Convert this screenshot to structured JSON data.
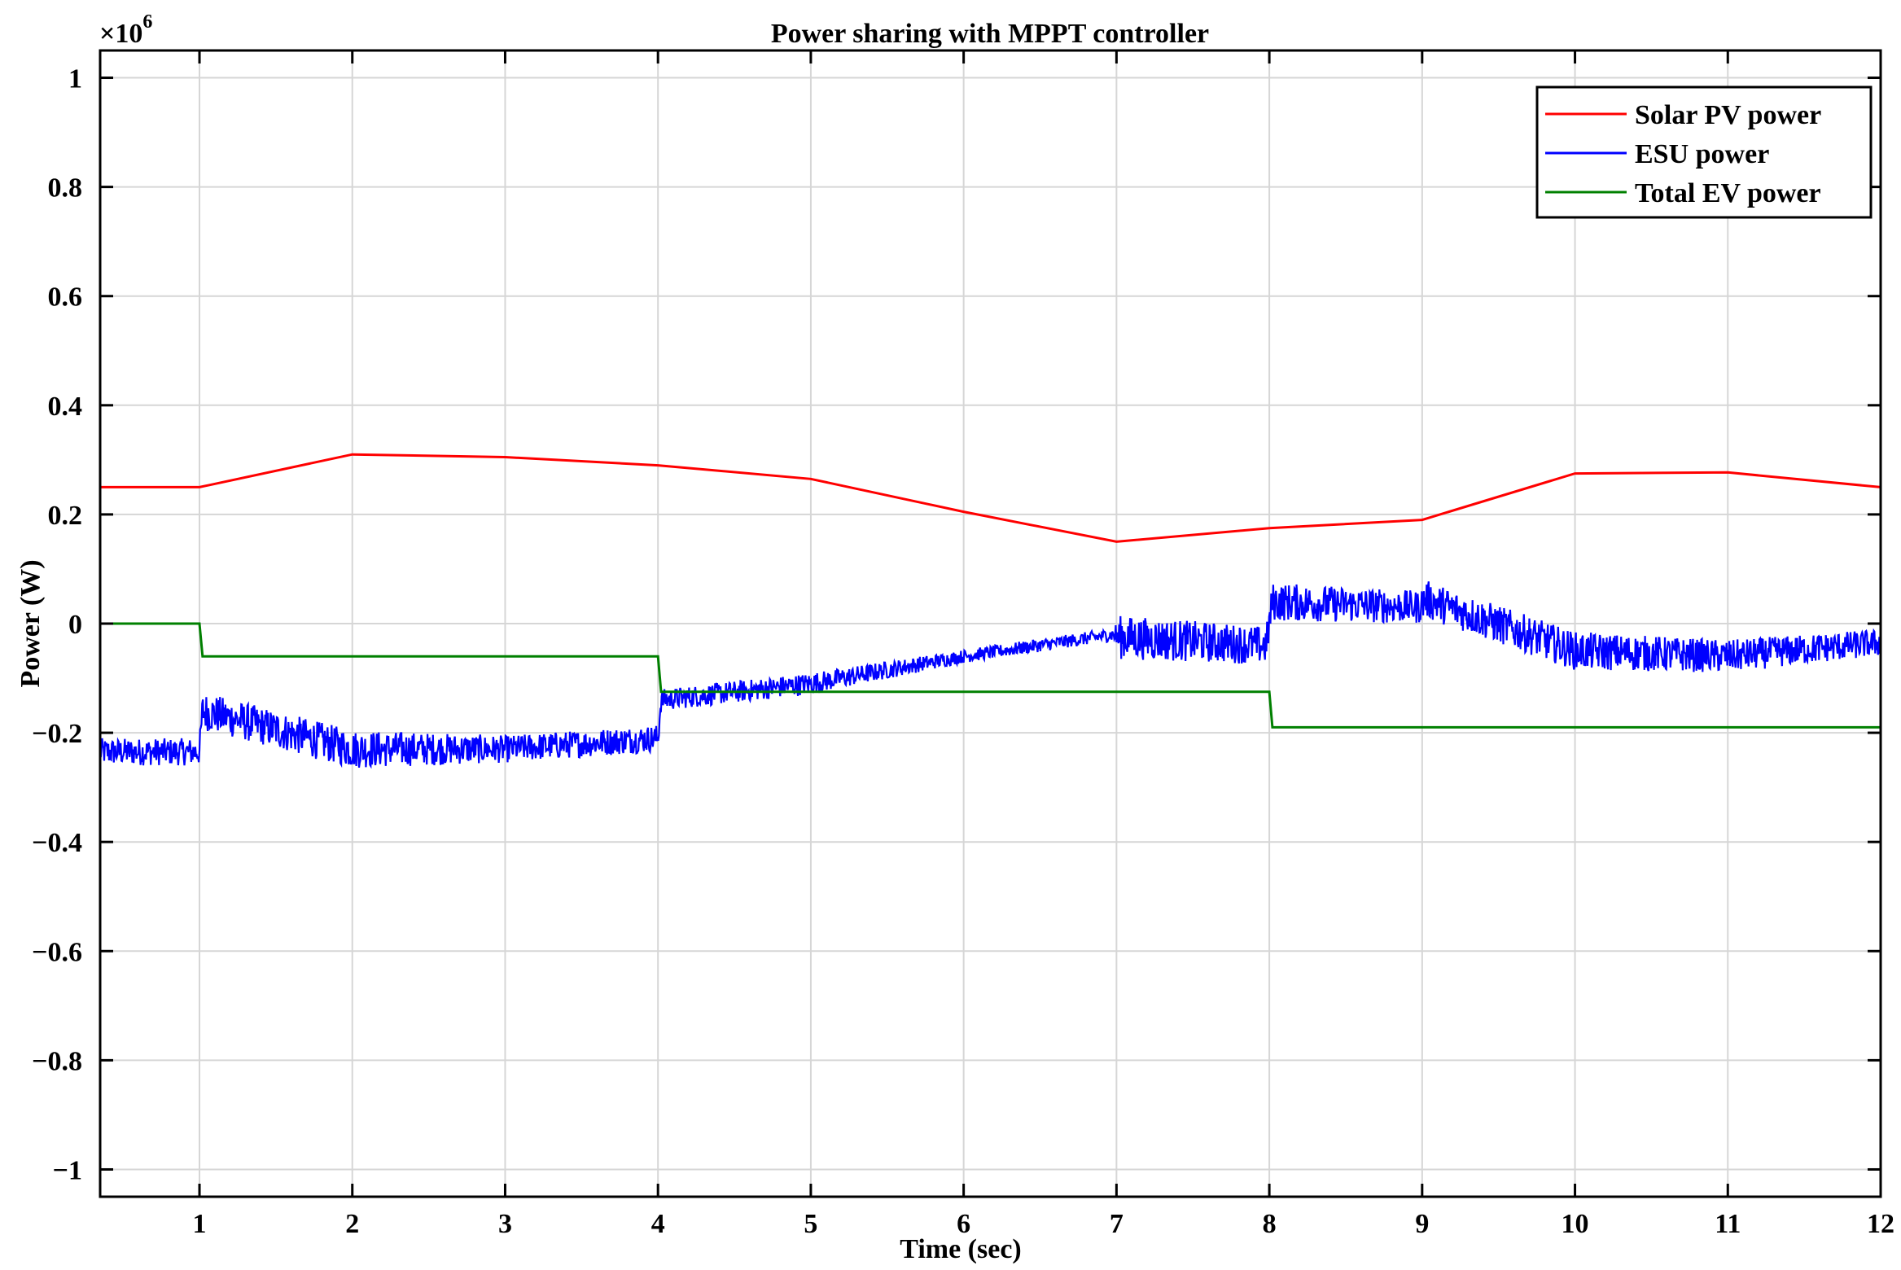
{
  "chart_data": {
    "type": "line",
    "title": "Power sharing with MPPT controller",
    "xlabel": "Time (sec)",
    "ylabel": "Power (W)",
    "y_multiplier": "×10",
    "y_multiplier_exponent": "6",
    "xlim": [
      0.35,
      12
    ],
    "ylim": [
      -1.05,
      1.05
    ],
    "xticks": [
      1,
      2,
      3,
      4,
      5,
      6,
      7,
      8,
      9,
      10,
      11,
      12
    ],
    "xtick_labels": [
      "1",
      "2",
      "3",
      "4",
      "5",
      "6",
      "7",
      "8",
      "9",
      "10",
      "11",
      "12"
    ],
    "yticks": [
      1,
      0.8,
      0.6,
      0.4,
      0.2,
      0,
      -0.2,
      -0.4,
      -0.6,
      -0.8,
      -1
    ],
    "ytick_labels": [
      "1",
      "0.8",
      "0.6",
      "0.4",
      "0.2",
      "0",
      "−0.2",
      "−0.4",
      "−0.6",
      "−0.8",
      "−1"
    ],
    "grid": true,
    "legend_position": "top-right",
    "series": [
      {
        "name": "Solar PV power",
        "color": "#ff0000",
        "x": [
          0.35,
          1,
          2,
          3,
          4,
          5,
          6,
          7,
          8,
          9,
          10,
          11,
          12
        ],
        "y": [
          0.25,
          0.25,
          0.31,
          0.305,
          0.29,
          0.265,
          0.205,
          0.15,
          0.175,
          0.19,
          0.275,
          0.277,
          0.25
        ]
      },
      {
        "name": "ESU power",
        "color": "#0000ff",
        "noisy": true,
        "x": [
          0.35,
          1,
          1.02,
          2,
          3,
          4,
          4.02,
          5,
          6,
          6.98,
          7.02,
          7.98,
          8.02,
          8.98,
          9.02,
          10,
          11,
          12
        ],
        "y": [
          -0.235,
          -0.235,
          -0.16,
          -0.23,
          -0.23,
          -0.21,
          -0.14,
          -0.11,
          -0.06,
          -0.02,
          -0.025,
          -0.04,
          0.04,
          0.03,
          0.045,
          -0.05,
          -0.06,
          -0.035
        ],
        "band_halfwidth": [
          0.025,
          0.025,
          0.035,
          0.035,
          0.025,
          0.025,
          0.02,
          0.02,
          0.012,
          0.012,
          0.04,
          0.035,
          0.035,
          0.03,
          0.035,
          0.035,
          0.03,
          0.025
        ]
      },
      {
        "name": "Total EV power",
        "color": "#008000",
        "x": [
          0.35,
          1,
          1.02,
          4,
          4.02,
          8,
          8.02,
          12
        ],
        "y": [
          0,
          0,
          -0.06,
          -0.06,
          -0.125,
          -0.125,
          -0.19,
          -0.19
        ]
      }
    ]
  }
}
